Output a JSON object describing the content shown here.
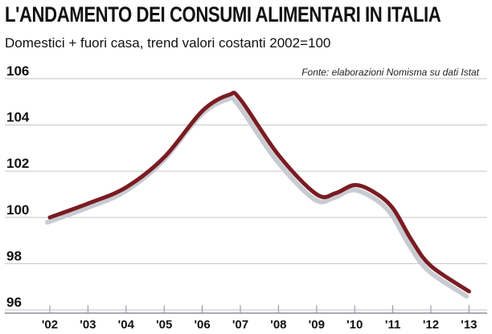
{
  "header": {
    "title": "L'ANDAMENTO DEI CONSUMI ALIMENTARI IN ITALIA",
    "subtitle": "Domestici + fuori casa, trend valori costanti 2002=100",
    "source": "Fonte: elaborazioni Nomisma su dati Istat"
  },
  "chart_data": {
    "type": "line",
    "title": "L'ANDAMENTO DEI CONSUMI ALIMENTARI IN ITALIA",
    "subtitle": "Domestici + fuori casa, trend valori costanti 2002=100",
    "xlabel": "",
    "ylabel": "",
    "categories": [
      "'02",
      "'03",
      "'04",
      "'05",
      "'06",
      "'07",
      "'08",
      "'09",
      "'10",
      "'11",
      "'12",
      "'13"
    ],
    "yticks": [
      96,
      98,
      100,
      102,
      104,
      106
    ],
    "ylim": [
      96,
      106
    ],
    "grid": true,
    "series": [
      {
        "x": [
          2002,
          2003,
          2004,
          2005,
          2006,
          2006.7,
          2007,
          2008,
          2009,
          2009.5,
          2010,
          2010.5,
          2011,
          2011.5,
          2012,
          2013
        ],
        "values": [
          100.0,
          100.6,
          101.3,
          102.6,
          104.6,
          105.3,
          105.1,
          102.7,
          101.0,
          101.05,
          101.4,
          101.1,
          100.4,
          99.0,
          97.9,
          96.8
        ],
        "color": "#7a1c22"
      }
    ],
    "shadow_color": "#c8ccd2",
    "grid_color": "#c9ced4"
  }
}
